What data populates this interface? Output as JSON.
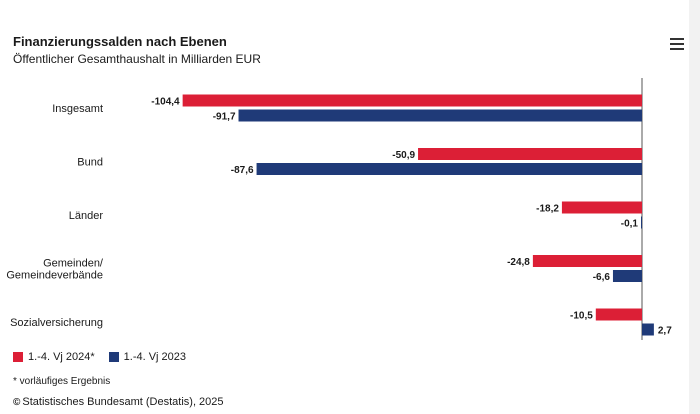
{
  "header": {
    "title": "Finanzierungssalden nach Ebenen",
    "subtitle": "Öffentlicher Gesamthaushalt in Milliarden EUR"
  },
  "menu": {
    "icon": "hamburger-menu-icon"
  },
  "colors": {
    "series1": "#dc1f36",
    "series2": "#1f3a78",
    "axis": "#555555"
  },
  "chart_data": {
    "type": "bar",
    "orientation": "horizontal",
    "categories": [
      "Insgesamt",
      "Bund",
      "Länder",
      "Gemeinden/\nGemeindeverbände",
      "Sozialversicherung"
    ],
    "series": [
      {
        "name": "1.-4. Vj 2024*",
        "values": [
          -104.4,
          -50.9,
          -18.2,
          -24.8,
          -10.5
        ],
        "labels": [
          "-104,4",
          "-50,9",
          "-18,2",
          "-24,8",
          "-10,5"
        ]
      },
      {
        "name": "1.-4. Vj 2023",
        "values": [
          -91.7,
          -87.6,
          -0.1,
          -6.6,
          2.7
        ],
        "labels": [
          "-91,7",
          "-87,6",
          "-0,1",
          "-6,6",
          "2,7"
        ]
      }
    ],
    "xlim": [
      -104.4,
      2.7
    ]
  },
  "legend": {
    "items": [
      "1.-4. Vj 2024*",
      "1.-4. Vj 2023"
    ],
    "position": "bottom-left"
  },
  "footnote": "* vorläufiges Ergebnis",
  "source": {
    "logo_text": "©",
    "text": "Statistisches Bundesamt (Destatis), 2025"
  }
}
